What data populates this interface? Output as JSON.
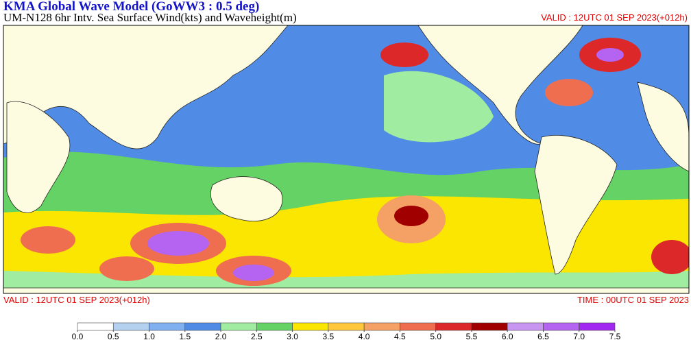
{
  "header": {
    "title": "KMA  Global Wave Model (GoWW3 : 0.5 deg)",
    "subtitle": "UM-N128  6hr Intv. Sea Surface Wind(kts) and Waveheight(m)",
    "valid_top": "VALID : 12UTC 01 SEP 2023(+012h)"
  },
  "footer": {
    "valid": "VALID : 12UTC 01 SEP 2023(+012h)",
    "time": "TIME : 00UTC 01 SEP 2023"
  },
  "colorbar": {
    "levels": [
      {
        "value": 0,
        "label": "0.0"
      },
      {
        "value": 0.5,
        "label": "0.5"
      },
      {
        "value": 1,
        "label": "1.0"
      },
      {
        "value": 1.5,
        "label": "1.5"
      },
      {
        "value": 2,
        "label": "2.0"
      },
      {
        "value": 2.5,
        "label": "2.5"
      },
      {
        "value": 3,
        "label": "3.0"
      },
      {
        "value": 3.5,
        "label": "3.5"
      },
      {
        "value": 4,
        "label": "4.0"
      },
      {
        "value": 4.5,
        "label": "4.5"
      },
      {
        "value": 5,
        "label": "5.0"
      },
      {
        "value": 5.5,
        "label": "5.5"
      },
      {
        "value": 6,
        "label": "6.0"
      },
      {
        "value": 6.5,
        "label": "6.5"
      },
      {
        "value": 7,
        "label": "7.0"
      },
      {
        "value": 7.5,
        "label": "7.5"
      }
    ],
    "colors": [
      "#ffffff",
      "#b4d2f0",
      "#80b0f0",
      "#508ce6",
      "#a0eca0",
      "#64d264",
      "#fae600",
      "#ffc83c",
      "#f5a064",
      "#f06e50",
      "#dc2828",
      "#a00000",
      "#c896f0",
      "#b464f0",
      "#a028f0"
    ]
  }
}
